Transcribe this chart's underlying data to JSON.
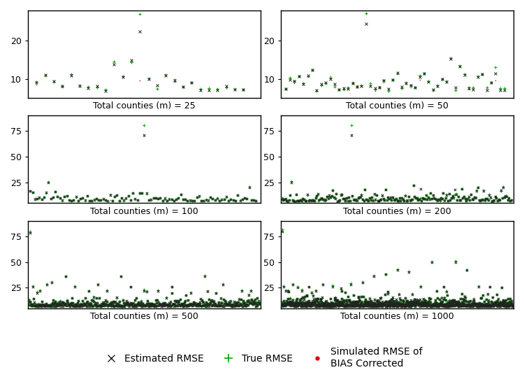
{
  "panels": [
    {
      "m": 25,
      "ylim": [
        5,
        28
      ],
      "yticks": [
        10,
        20
      ],
      "row": 0,
      "col": 0
    },
    {
      "m": 50,
      "ylim": [
        5,
        28
      ],
      "yticks": [
        10,
        20
      ],
      "row": 0,
      "col": 1
    },
    {
      "m": 100,
      "ylim": [
        5,
        90
      ],
      "yticks": [
        25,
        50,
        75
      ],
      "row": 1,
      "col": 0
    },
    {
      "m": 200,
      "ylim": [
        5,
        90
      ],
      "yticks": [
        25,
        50,
        75
      ],
      "row": 1,
      "col": 1
    },
    {
      "m": 500,
      "ylim": [
        5,
        90
      ],
      "yticks": [
        25,
        50,
        75
      ],
      "row": 2,
      "col": 0
    },
    {
      "m": 1000,
      "ylim": [
        5,
        90
      ],
      "yticks": [
        25,
        50,
        75
      ],
      "row": 2,
      "col": 1
    }
  ],
  "color_x": "#222222",
  "color_plus": "#00aa00",
  "color_dot": "#dd0000",
  "legend_fontsize": 10,
  "label_fontsize": 9,
  "tick_fontsize": 9
}
